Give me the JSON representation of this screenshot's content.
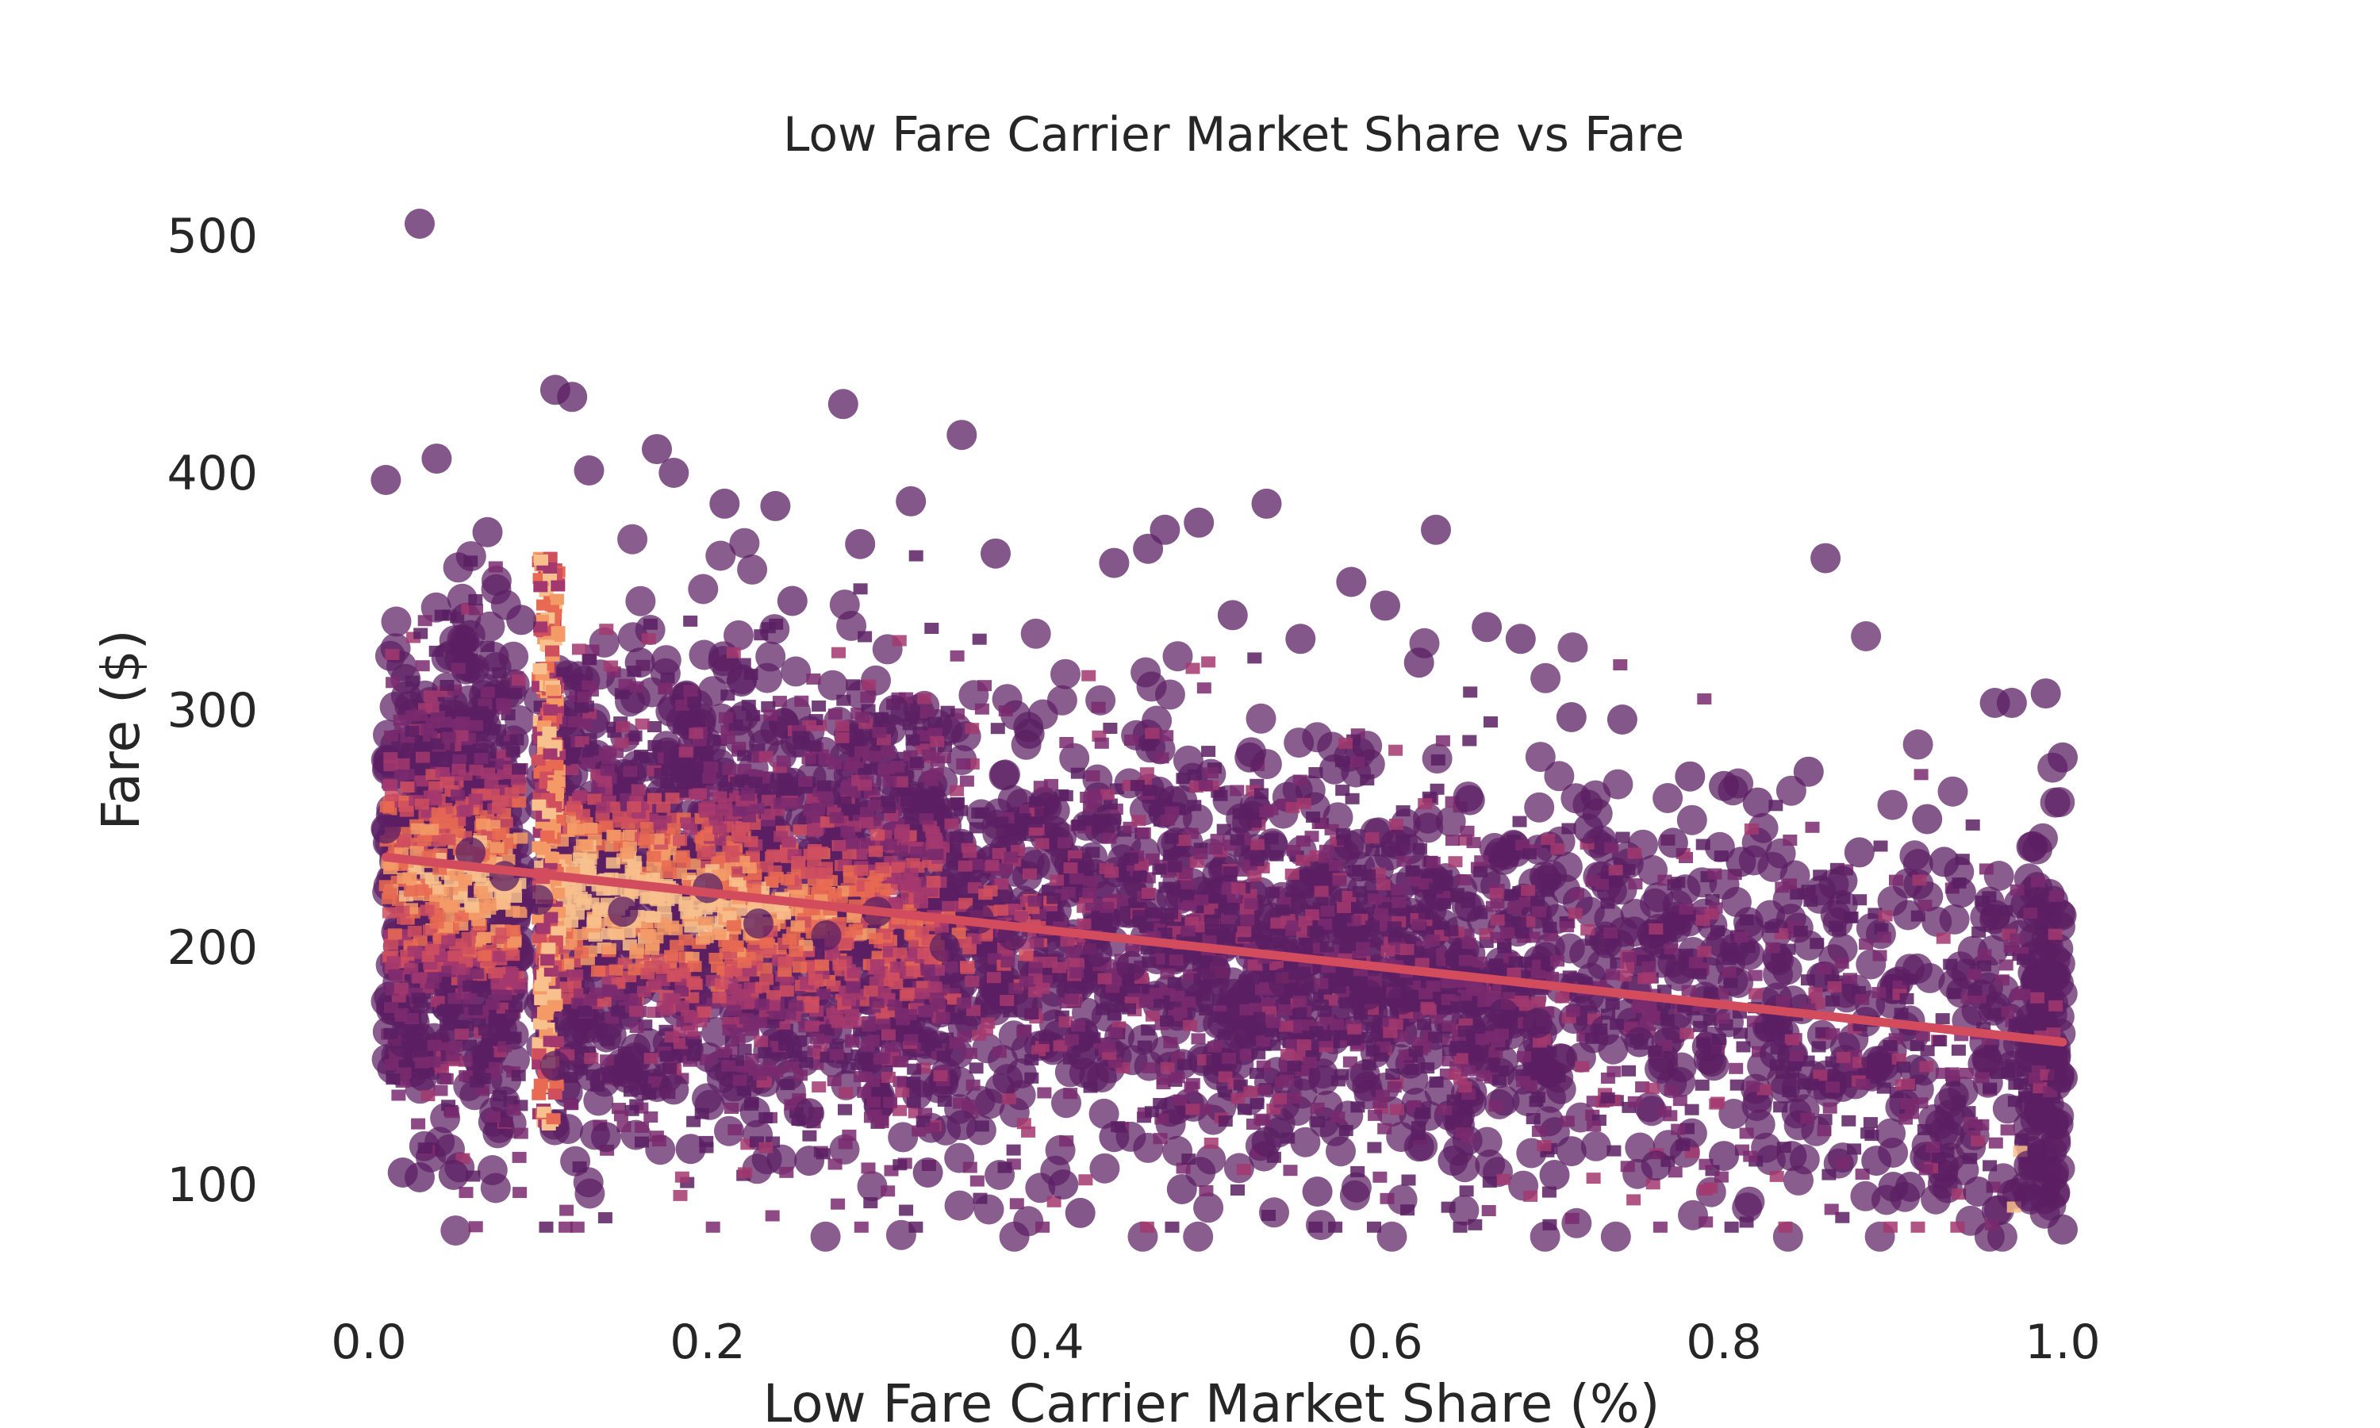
{
  "chart_data": {
    "type": "scatter",
    "title": "Low Fare Carrier Market Share vs Fare",
    "xlabel": "Low Fare Carrier Market Share (%)",
    "ylabel": "Fare ($)",
    "xlim": [
      -0.05,
      1.1
    ],
    "ylim": [
      50,
      525
    ],
    "x_ticks": [
      0.0,
      0.2,
      0.4,
      0.6,
      0.8,
      1.0
    ],
    "x_tick_labels": [
      "0.0",
      "0.2",
      "0.4",
      "0.6",
      "0.8",
      "1.0"
    ],
    "y_ticks": [
      100,
      200,
      300,
      400,
      500
    ],
    "y_tick_labels": [
      "100",
      "200",
      "300",
      "400",
      "500"
    ],
    "grid": false,
    "point_color": "#5b1f63",
    "density_colors": [
      "#5b1f63",
      "#7a2a6e",
      "#a3386e",
      "#cf4f5f",
      "#e86a52",
      "#f39a67",
      "#f8c08c"
    ],
    "series": [
      {
        "type": "scatter",
        "x": [
          0.03,
          0.11,
          0.12,
          0.28,
          0.35,
          0.53,
          0.63,
          0.86,
          0.01,
          0.04,
          0.13,
          0.17,
          0.18,
          0.21,
          0.24,
          0.32,
          0.49,
          0.47,
          0.46,
          0.58,
          0.6,
          0.68,
          0.97,
          0.99,
          1.0,
          0.96,
          0.92,
          0.85,
          0.42,
          0.02,
          0.05,
          0.03,
          0.9,
          0.98,
          0.95,
          1.0,
          0.07,
          0.09,
          0.25,
          0.29,
          0.37,
          0.44,
          0.51,
          0.55,
          0.62,
          0.66,
          0.71,
          0.74,
          0.78,
          0.8,
          0.82,
          0.88,
          0.93,
          0.16,
          0.22,
          0.31,
          0.39,
          0.52,
          0.57,
          0.65,
          0.72,
          0.77,
          0.81,
          0.87,
          0.94,
          0.14,
          0.19,
          0.26,
          0.33,
          0.41,
          0.48,
          0.56,
          0.64,
          0.7,
          0.76,
          0.84,
          0.91,
          0.01,
          0.06,
          0.08,
          0.1,
          0.15,
          0.2,
          0.23,
          0.27,
          0.3,
          0.34,
          0.36,
          0.38,
          0.43,
          0.45,
          0.5,
          0.54,
          0.59,
          0.61,
          0.67,
          0.69,
          0.73,
          0.75,
          0.79,
          0.83,
          0.89,
          0.97,
          1.0,
          0.02,
          0.11,
          0.18,
          0.26,
          0.35,
          0.44,
          0.53,
          0.62,
          0.71,
          0.8,
          0.89,
          0.98
        ],
        "y": [
          505,
          435,
          432,
          429,
          416,
          387,
          376,
          364,
          397,
          406,
          401,
          410,
          400,
          387,
          386,
          388,
          379,
          376,
          368,
          354,
          344,
          330,
          303,
          307,
          280,
          303,
          254,
          274,
          88,
          105,
          104,
          103,
          99,
          95,
          97,
          81,
          375,
          338,
          346,
          370,
          366,
          362,
          340,
          330,
          320,
          335,
          297,
          296,
          272,
          268,
          261,
          240,
          236,
          320,
          312,
          300,
          290,
          280,
          275,
          262,
          250,
          244,
          236,
          228,
          223,
          120,
          115,
          110,
          105,
          100,
          98,
          97,
          110,
          104,
          108,
          112,
          99,
          250,
          240,
          230,
          220,
          215,
          225,
          210,
          205,
          215,
          200,
          212,
          205,
          198,
          192,
          190,
          185,
          180,
          178,
          172,
          168,
          165,
          160,
          158,
          155,
          152,
          150,
          145,
          160,
          150,
          140,
          130,
          125,
          120,
          118,
          116,
          114,
          112,
          110,
          108
        ],
        "regression": {
          "x": [
            0.01,
            1.0
          ],
          "y": [
            238,
            160
          ],
          "color": "#d34c5d"
        }
      }
    ]
  }
}
